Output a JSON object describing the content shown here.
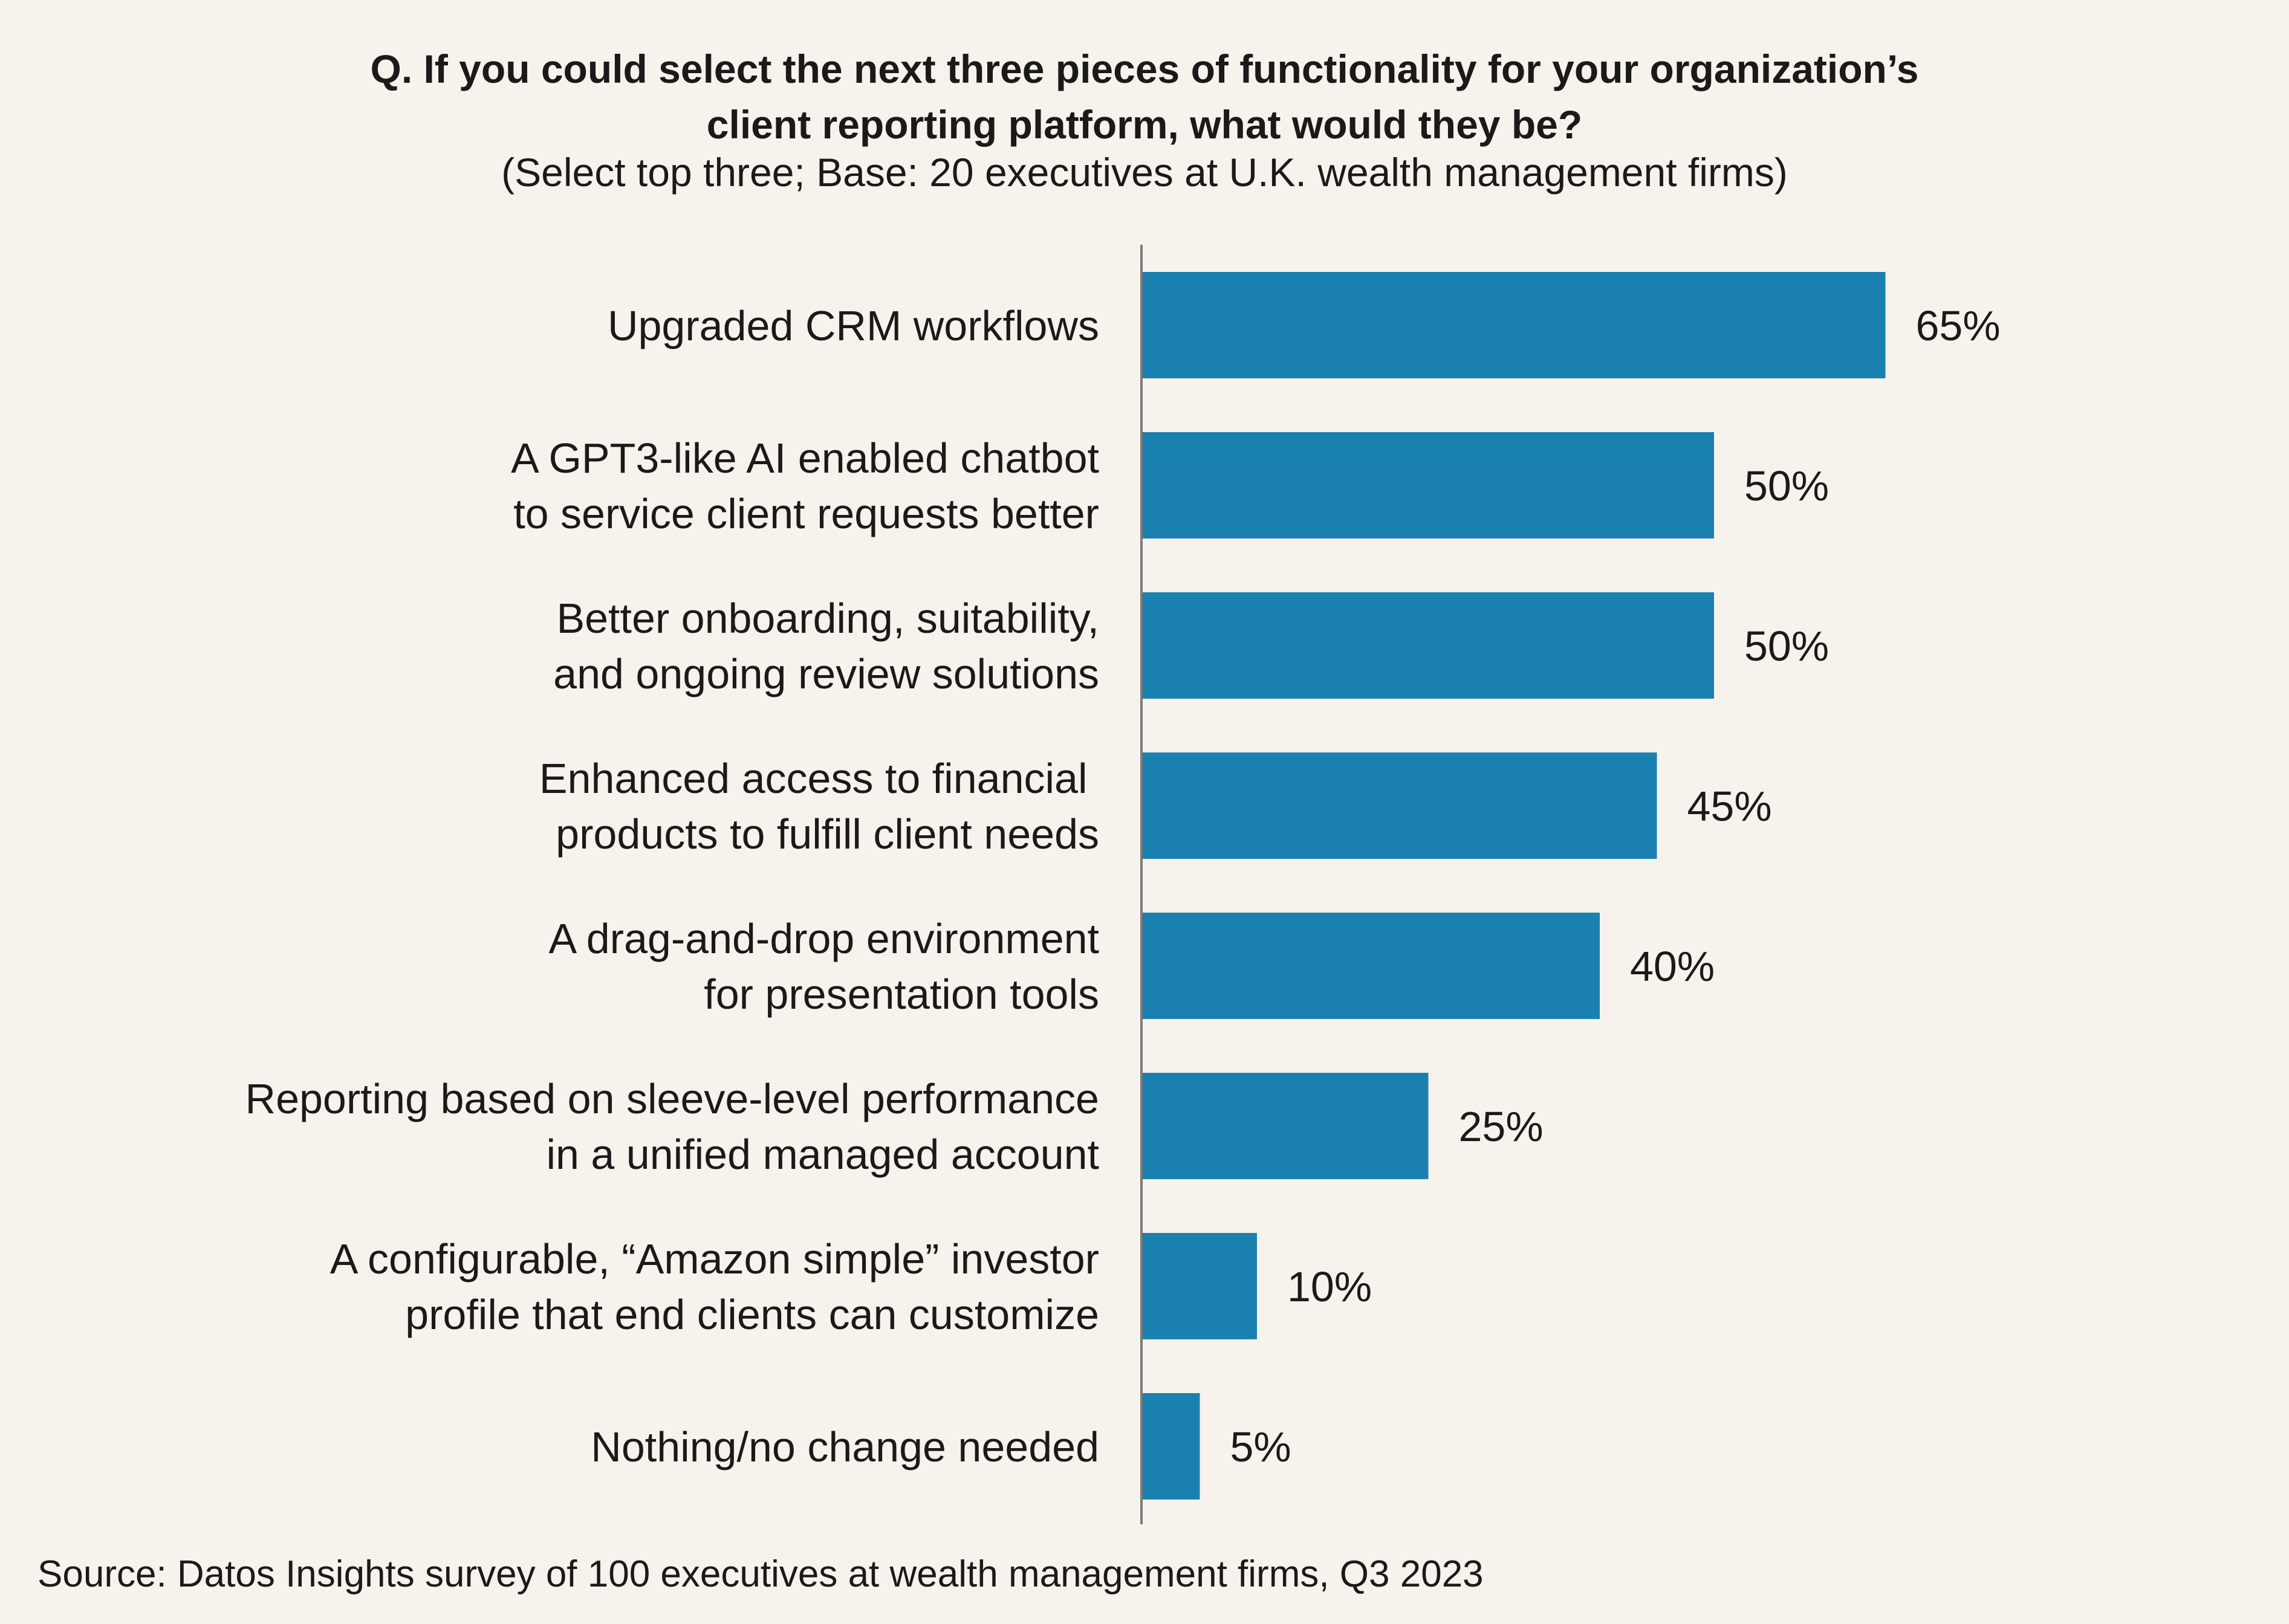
{
  "chart_data": {
    "type": "bar",
    "orientation": "horizontal",
    "title": [
      "Q. If you could select the next three pieces of functionality for your organization’s",
      "client reporting platform, what would they be?"
    ],
    "subtitle": "(Select top three; Base: 20 executives at U.K. wealth management firms)",
    "categories": [
      [
        "Upgraded CRM workflows"
      ],
      [
        "A GPT3-like AI enabled chatbot",
        "to service client requests better"
      ],
      [
        "Better onboarding, suitability,",
        "and ongoing review solutions"
      ],
      [
        "Enhanced access to financial ",
        "products to fulfill client needs"
      ],
      [
        "A drag-and-drop environment",
        "for presentation tools"
      ],
      [
        "Reporting based on sleeve-level performance",
        "in a unified managed account"
      ],
      [
        "A configurable, “Amazon simple” investor",
        "profile that end clients can customize"
      ],
      [
        "Nothing/no change needed"
      ]
    ],
    "values": [
      65,
      50,
      50,
      45,
      40,
      25,
      10,
      5
    ],
    "value_labels": [
      "65%",
      "50%",
      "50%",
      "45%",
      "40%",
      "25%",
      "10%",
      "5%"
    ],
    "unit": "%",
    "xlim": [
      0,
      100
    ],
    "grid": false,
    "legend": "none",
    "bar_color": "#1a80b0",
    "axis_color": "#7a7a7a",
    "source": "Source: Datos Insights survey of 100 executives at wealth management firms, Q3 2023"
  }
}
